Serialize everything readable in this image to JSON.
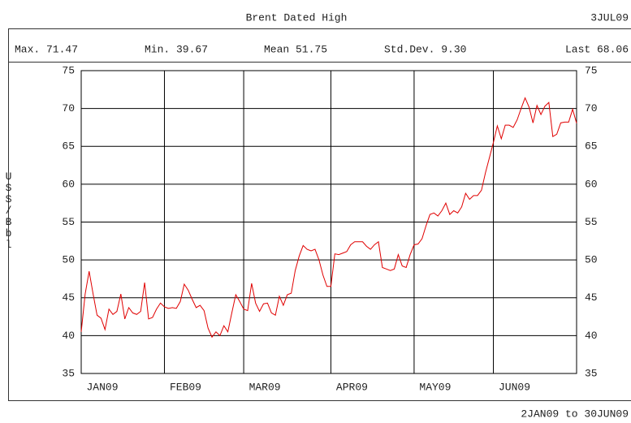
{
  "chart_data": {
    "type": "line",
    "title": "Brent Dated High",
    "date": "3JUL09",
    "stats": [
      "Max. 71.47",
      "Min. 39.67",
      "Mean 51.75",
      "Std.Dev. 9.30",
      "Last 68.06"
    ],
    "y_label": "US$/Bbl",
    "footer": "2JAN09 to 30JUN09",
    "categories": [
      "JAN09",
      null,
      null,
      null,
      null,
      null,
      null,
      null,
      null,
      null,
      null,
      null,
      null,
      null,
      null,
      null,
      null,
      null,
      null,
      null,
      null,
      "FEB09",
      null,
      null,
      null,
      null,
      null,
      null,
      null,
      null,
      null,
      null,
      null,
      null,
      null,
      null,
      null,
      null,
      null,
      null,
      null,
      "MAR09",
      null,
      null,
      null,
      null,
      null,
      null,
      null,
      null,
      null,
      null,
      null,
      null,
      null,
      null,
      null,
      null,
      null,
      null,
      null,
      null,
      null,
      "APR09",
      null,
      null,
      null,
      null,
      null,
      null,
      null,
      null,
      null,
      null,
      null,
      null,
      null,
      null,
      null,
      null,
      null,
      null,
      null,
      null,
      "MAY09",
      null,
      null,
      null,
      null,
      null,
      null,
      null,
      null,
      null,
      null,
      null,
      null,
      null,
      null,
      null,
      null,
      null,
      null,
      null,
      "JUN09",
      null,
      null,
      null,
      null,
      null,
      null,
      null,
      null,
      null,
      null,
      null,
      null,
      null,
      null,
      null,
      null,
      null,
      null,
      null,
      null,
      null
    ],
    "series": [
      {
        "name": "Brent Dated High",
        "color": "#e00000",
        "values": [
          40.5,
          45.5,
          48.5,
          45.5,
          42.7,
          42.3,
          40.8,
          43.5,
          42.8,
          43.2,
          45.5,
          42.2,
          43.7,
          43,
          42.8,
          43.2,
          47,
          42.2,
          42.4,
          43.5,
          44.3,
          43.8,
          43.6,
          43.7,
          43.6,
          44.5,
          46.8,
          46,
          44.8,
          43.7,
          44,
          43.3,
          41,
          39.8,
          40.5,
          40,
          41.3,
          40.5,
          43,
          45.4,
          44.5,
          43.5,
          43.3,
          46.9,
          44.3,
          43.2,
          44.2,
          44.3,
          43,
          42.7,
          45.2,
          44,
          45.4,
          45.6,
          48.6,
          50.5,
          51.9,
          51.4,
          51.2,
          51.4,
          50,
          48,
          46.5,
          46.5,
          50.8,
          50.7,
          50.9,
          51.1,
          52,
          52.4,
          52.4,
          52.4,
          51.8,
          51.4,
          52,
          52.4,
          49,
          48.8,
          48.6,
          48.8,
          50.7,
          49.2,
          49,
          50.7,
          52,
          52.1,
          52.8,
          54.5,
          56,
          56.2,
          55.8,
          56.5,
          57.5,
          56,
          56.5,
          56.2,
          57,
          58.8,
          58,
          58.5,
          58.5,
          59.2,
          61.5,
          63.5,
          65.5,
          67.7,
          66,
          67.8,
          67.8,
          67.5,
          68.5,
          70,
          71.4,
          70.2,
          68.1,
          70.4,
          69.2,
          70.3,
          70.8,
          66.3,
          66.6,
          68.1,
          68.2,
          68.2,
          69.9,
          68.06
        ]
      }
    ],
    "ylim": [
      35,
      75
    ],
    "yticks": [
      35,
      40,
      45,
      50,
      55,
      60,
      65,
      70,
      75
    ],
    "grid": true
  }
}
